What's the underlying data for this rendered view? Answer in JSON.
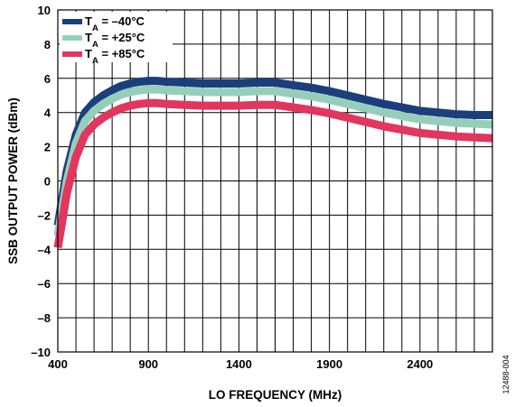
{
  "chart_data": {
    "type": "line",
    "title": "",
    "xlabel": "LO FREQUENCY (MHz)",
    "ylabel": "SSB OUTPUT POWER (dBm)",
    "xlim": [
      400,
      2800
    ],
    "ylim": [
      -10,
      10
    ],
    "xticks": [
      400,
      900,
      1400,
      1900,
      2400
    ],
    "xtick_labels": [
      "400",
      "900",
      "1400",
      "1900",
      "2400"
    ],
    "yticks": [
      -10,
      -8,
      -6,
      -4,
      -2,
      0,
      2,
      4,
      6,
      8,
      10
    ],
    "ytick_labels": [
      "–10",
      "–8",
      "–6",
      "–4",
      "–2",
      "0",
      "2",
      "4",
      "6",
      "8",
      "10"
    ],
    "grid": true,
    "legend_position": "top-left",
    "figure_number": "12488-004",
    "x": [
      400,
      450,
      500,
      550,
      600,
      650,
      700,
      750,
      800,
      850,
      900,
      950,
      1000,
      1100,
      1200,
      1300,
      1400,
      1500,
      1600,
      1700,
      1800,
      1900,
      2000,
      2100,
      2200,
      2300,
      2400,
      2500,
      2600,
      2700,
      2800
    ],
    "series": [
      {
        "name_main": "T",
        "name_sub": "A",
        "name_rest": " = –40°C",
        "color": "#1b3f7c",
        "values": [
          -2.6,
          0.6,
          2.7,
          4.0,
          4.6,
          5.0,
          5.3,
          5.55,
          5.7,
          5.8,
          5.85,
          5.85,
          5.8,
          5.75,
          5.7,
          5.7,
          5.7,
          5.75,
          5.75,
          5.6,
          5.45,
          5.25,
          5.0,
          4.75,
          4.5,
          4.3,
          4.1,
          4.0,
          3.9,
          3.85,
          3.85
        ]
      },
      {
        "name_main": "T",
        "name_sub": "A",
        "name_rest": " = +25°C",
        "color": "#96cfb9",
        "values": [
          -3.2,
          0.0,
          2.2,
          3.5,
          4.1,
          4.5,
          4.8,
          5.05,
          5.2,
          5.3,
          5.35,
          5.35,
          5.3,
          5.25,
          5.2,
          5.2,
          5.2,
          5.25,
          5.25,
          5.1,
          4.95,
          4.75,
          4.5,
          4.25,
          4.0,
          3.8,
          3.6,
          3.5,
          3.4,
          3.35,
          3.3
        ]
      },
      {
        "name_main": "T",
        "name_sub": "A",
        "name_rest": " = +85°C",
        "color": "#e2365f",
        "values": [
          -3.9,
          -0.7,
          1.4,
          2.7,
          3.3,
          3.7,
          4.0,
          4.25,
          4.4,
          4.5,
          4.55,
          4.55,
          4.5,
          4.45,
          4.4,
          4.4,
          4.4,
          4.45,
          4.45,
          4.3,
          4.15,
          3.95,
          3.7,
          3.45,
          3.2,
          3.0,
          2.8,
          2.7,
          2.6,
          2.55,
          2.5
        ]
      }
    ]
  }
}
